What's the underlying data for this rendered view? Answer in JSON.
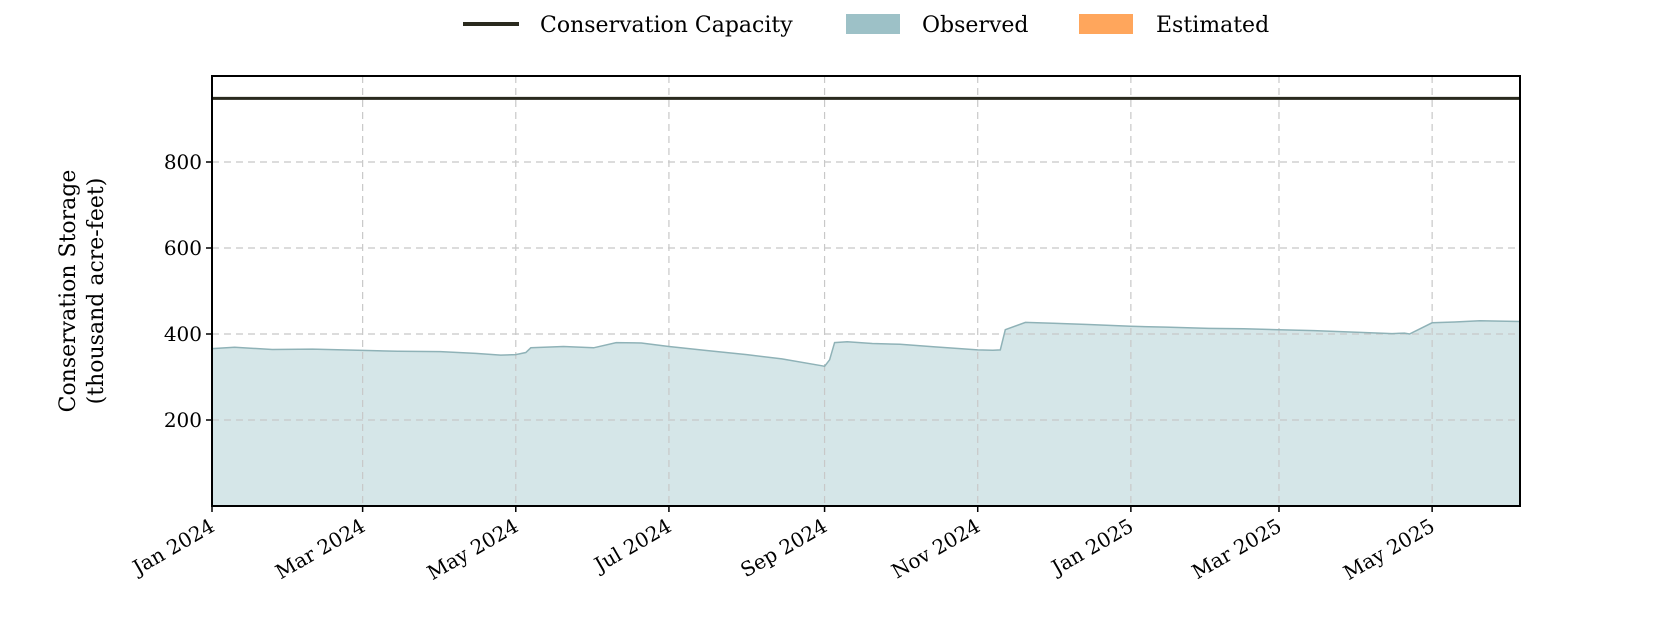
{
  "chart_data": {
    "type": "area",
    "ylabel_line1": "Conservation Storage",
    "ylabel_line2": "(thousand acre-feet)",
    "ylim": [
      0,
      1000
    ],
    "y_ticks": [
      200,
      400,
      600,
      800
    ],
    "x_range": [
      "2024-01-01",
      "2025-06-05"
    ],
    "x_ticks": [
      {
        "date": "2024-01-01",
        "label": "Jan 2024"
      },
      {
        "date": "2024-03-01",
        "label": "Mar 2024"
      },
      {
        "date": "2024-05-01",
        "label": "May 2024"
      },
      {
        "date": "2024-07-01",
        "label": "Jul 2024"
      },
      {
        "date": "2024-09-01",
        "label": "Sep 2024"
      },
      {
        "date": "2024-11-01",
        "label": "Nov 2024"
      },
      {
        "date": "2025-01-01",
        "label": "Jan 2025"
      },
      {
        "date": "2025-03-01",
        "label": "Mar 2025"
      },
      {
        "date": "2025-05-01",
        "label": "May 2025"
      }
    ],
    "grid": true,
    "legend_position": "top-center",
    "legend": [
      {
        "label": "Conservation Capacity",
        "kind": "line",
        "color": "#2a2a1e"
      },
      {
        "label": "Observed",
        "kind": "patch",
        "color": "#9dc1c7"
      },
      {
        "label": "Estimated",
        "kind": "patch",
        "color": "#ffa65c"
      }
    ],
    "conservation_capacity": 948,
    "observed": {
      "fill_color": "#d5e6e8",
      "line_color": "#8fb2b7",
      "x": [
        "2024-01-01",
        "2024-01-10",
        "2024-01-25",
        "2024-02-10",
        "2024-02-28",
        "2024-03-15",
        "2024-04-01",
        "2024-04-15",
        "2024-04-25",
        "2024-05-01",
        "2024-05-05",
        "2024-05-07",
        "2024-05-20",
        "2024-06-01",
        "2024-06-10",
        "2024-06-20",
        "2024-07-01",
        "2024-07-15",
        "2024-08-01",
        "2024-08-15",
        "2024-08-31",
        "2024-09-01",
        "2024-09-03",
        "2024-09-05",
        "2024-09-10",
        "2024-09-20",
        "2024-10-01",
        "2024-10-15",
        "2024-11-01",
        "2024-11-07",
        "2024-11-10",
        "2024-11-12",
        "2024-11-20",
        "2024-12-01",
        "2024-12-15",
        "2025-01-01",
        "2025-01-15",
        "2025-02-01",
        "2025-02-15",
        "2025-03-01",
        "2025-03-15",
        "2025-04-01",
        "2025-04-15",
        "2025-04-20",
        "2025-04-22",
        "2025-05-01",
        "2025-05-10",
        "2025-05-20",
        "2025-06-05"
      ],
      "y": [
        366,
        369,
        364,
        365,
        362,
        360,
        359,
        355,
        351,
        352,
        357,
        368,
        371,
        368,
        380,
        379,
        371,
        362,
        352,
        342,
        326,
        325,
        340,
        380,
        382,
        378,
        376,
        370,
        363,
        362,
        363,
        410,
        427,
        425,
        422,
        418,
        416,
        413,
        412,
        410,
        408,
        404,
        401,
        402,
        400,
        426,
        428,
        431,
        429
      ]
    }
  }
}
